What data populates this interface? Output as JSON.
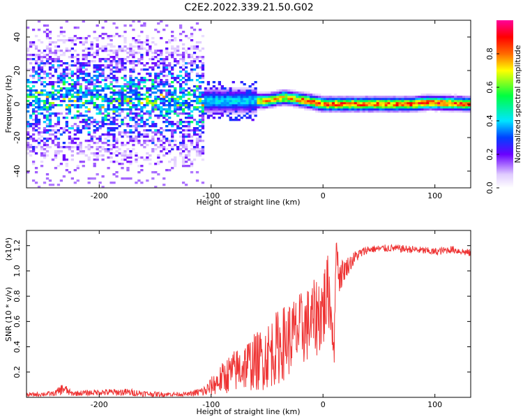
{
  "title": "C2E2.2022.339.21.50.G02",
  "chart_data": [
    {
      "type": "heatmap",
      "xlabel": "Height of straight line (km)",
      "ylabel": "Frequency (Hz)",
      "xlim": [
        -265,
        132
      ],
      "ylim": [
        -50,
        50
      ],
      "xticks": [
        -200,
        -100,
        0,
        100
      ],
      "yticks": [
        -40,
        -20,
        0,
        20,
        40
      ],
      "colorbar": {
        "label": "Normalized spectral amplitude",
        "range": [
          0,
          1
        ],
        "ticks": [
          0.0,
          0.2,
          0.4,
          0.6,
          0.8
        ],
        "tick_labels": [
          "0.0",
          "0.2",
          "0.4",
          "0.6",
          "0.8"
        ],
        "colors": [
          "#ffffff",
          "#e0ccff",
          "#6a00ff",
          "#0040ff",
          "#00e5ff",
          "#00ff40",
          "#ffff00",
          "#ff6a00",
          "#ff0000",
          "#ff0099"
        ]
      },
      "ridge": {
        "description": "Broad noisy band spread across frequencies for heights below about -100 km; narrow bright band near 0-5 Hz from -100 km onward, strongest (red/orange) between about -60 and 130 km.",
        "center_freq": [
          [
            -265,
            3
          ],
          [
            -100,
            2
          ],
          [
            -50,
            2
          ],
          [
            -35,
            4
          ],
          [
            -15,
            2
          ],
          [
            0,
            0
          ],
          [
            20,
            0
          ],
          [
            80,
            0
          ],
          [
            95,
            1
          ],
          [
            132,
            0
          ]
        ]
      }
    },
    {
      "type": "line",
      "xlabel": "Height of straight line (km)",
      "ylabel": "SNR (10 * v/v)",
      "multiplier_label": "(x10⁴)",
      "xlim": [
        -265,
        132
      ],
      "ylim": [
        0,
        1.32
      ],
      "xticks": [
        -200,
        -100,
        0,
        100
      ],
      "yticks": [
        0.2,
        0.4,
        0.6,
        0.8,
        1.0,
        1.2
      ],
      "ytick_labels": [
        "0.2",
        "0.4",
        "0.6",
        "0.8",
        "1.0",
        "1.2"
      ],
      "color": "#ee3333",
      "series": [
        {
          "x": [
            -265,
            -240,
            -232,
            -225,
            -200,
            -175,
            -150,
            -120,
            -105,
            -95,
            -85,
            -70,
            -55,
            -40,
            -25,
            -10,
            0,
            5,
            8,
            10,
            12,
            14,
            20,
            30,
            40,
            60,
            80,
            100,
            115,
            132
          ],
          "y": [
            0.02,
            0.03,
            0.07,
            0.03,
            0.04,
            0.04,
            0.025,
            0.025,
            0.05,
            0.12,
            0.18,
            0.25,
            0.3,
            0.4,
            0.5,
            0.6,
            0.7,
            0.85,
            0.6,
            0.4,
            1.28,
            0.95,
            1.02,
            1.12,
            1.17,
            1.18,
            1.17,
            1.15,
            1.17,
            1.14
          ],
          "noise": [
            0.015,
            0.02,
            0.05,
            0.02,
            0.025,
            0.03,
            0.02,
            0.015,
            0.05,
            0.1,
            0.15,
            0.2,
            0.25,
            0.3,
            0.3,
            0.3,
            0.35,
            0.3,
            0.2,
            0.15,
            0.05,
            0.15,
            0.08,
            0.05,
            0.03,
            0.03,
            0.03,
            0.03,
            0.03,
            0.03
          ]
        }
      ]
    }
  ]
}
